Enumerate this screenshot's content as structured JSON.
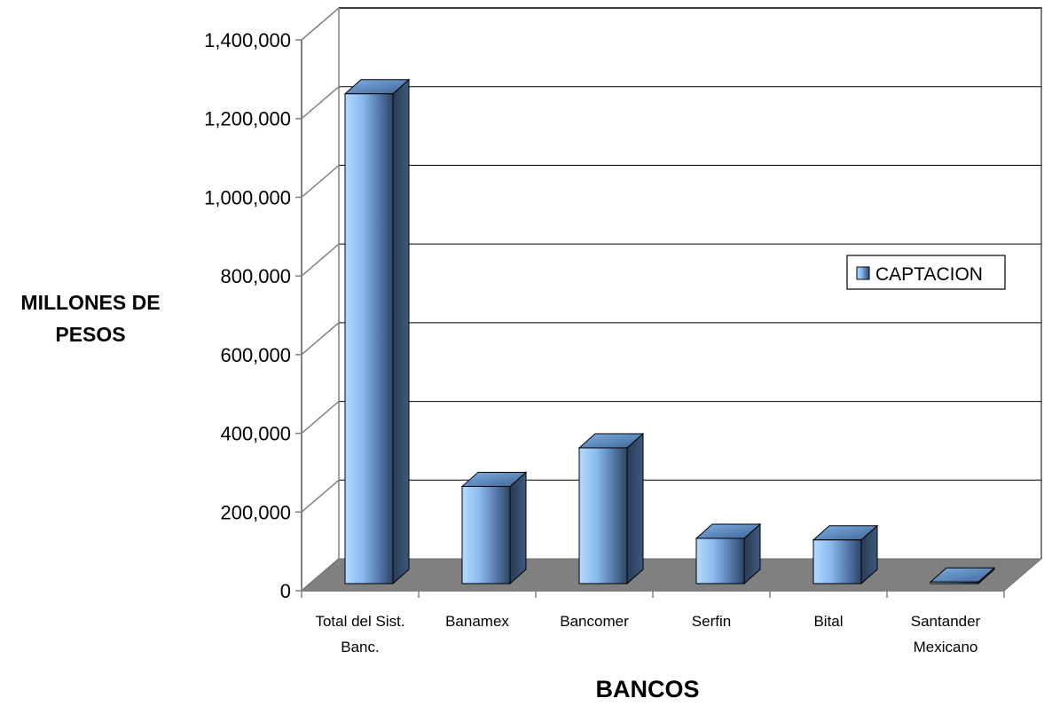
{
  "chart_data": {
    "type": "bar",
    "title": "",
    "xlabel": "BANCOS",
    "ylabel": [
      "MILLONES DE",
      "PESOS"
    ],
    "categories": [
      [
        "Total del Sist.",
        "Banc."
      ],
      [
        "Banamex"
      ],
      [
        "Bancomer"
      ],
      [
        "Serfin"
      ],
      [
        "Bital"
      ],
      [
        "Santander",
        "Mexicano"
      ]
    ],
    "series": [
      {
        "name": "CAPTACION",
        "values": [
          1245000,
          247000,
          345000,
          115000,
          111000,
          4000
        ]
      }
    ],
    "ylim": [
      0,
      1400000
    ],
    "yticks": [
      "0",
      "200,000",
      "400,000",
      "600,000",
      "800,000",
      "1,000,000",
      "1,200,000",
      "1,400,000"
    ],
    "ytick_values": [
      0,
      200000,
      400000,
      600000,
      800000,
      1000000,
      1200000,
      1400000
    ],
    "grid": true,
    "legend_position": "right",
    "style": "3d-column",
    "colors": {
      "bar_light": "#a9d3ff",
      "bar_mid": "#6a9fd6",
      "bar_dark": "#2a3f5c",
      "bar_top": "#5b8ac4",
      "floor": "#808080",
      "grid": "#000000"
    }
  }
}
